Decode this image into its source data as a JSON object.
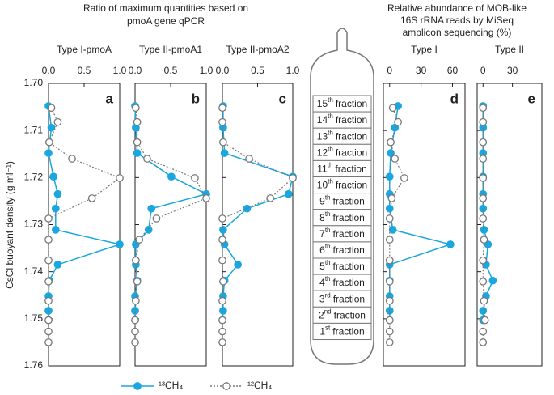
{
  "left_title": [
    "Ratio of maximum quantities based on",
    "pmoA gene qPCR"
  ],
  "right_title": [
    "Relative abundance of MOB-like",
    "16S rRNA  reads by MiSeq",
    "amplicon sequencing (%)"
  ],
  "diagram": {
    "fractions": [
      {
        "n": "15",
        "sup": "th",
        "word": "fraction"
      },
      {
        "n": "14",
        "sup": "th",
        "word": "fraction"
      },
      {
        "n": "13",
        "sup": "th",
        "word": "fraction"
      },
      {
        "n": "12",
        "sup": "th",
        "word": "fraction"
      },
      {
        "n": "11",
        "sup": "th",
        "word": "fraction"
      },
      {
        "n": "10",
        "sup": "th",
        "word": "fraction"
      },
      {
        "n": "9",
        "sup": "th",
        "word": "fraction"
      },
      {
        "n": "8",
        "sup": "th",
        "word": "fraction"
      },
      {
        "n": "7",
        "sup": "th",
        "word": "fraction"
      },
      {
        "n": "6",
        "sup": "th",
        "word": "fraction"
      },
      {
        "n": "5",
        "sup": "th",
        "word": "fraction"
      },
      {
        "n": "4",
        "sup": "th",
        "word": "fraction"
      },
      {
        "n": "3",
        "sup": "rd",
        "word": "fraction"
      },
      {
        "n": "2",
        "sup": "nd",
        "word": "fraction"
      },
      {
        "n": "1",
        "sup": "st",
        "word": "fraction"
      }
    ]
  },
  "chart_data": [
    {
      "type": "line",
      "title": "Type I-pmoA",
      "panel_label": "a",
      "ylabel": "CsCl buoyant density (g ml⁻¹)",
      "xlim": [
        0,
        1
      ],
      "xticks": [
        {
          "value": 0,
          "label": "0.0"
        },
        {
          "value": 0.5,
          "label": "0.5"
        },
        {
          "value": 1,
          "label": "1.0"
        }
      ],
      "ylim": [
        1.7,
        1.76
      ],
      "yticks": [
        {
          "value": 1.7,
          "label": "1.70"
        },
        1.71,
        1.72,
        1.73,
        1.74,
        1.75,
        1.76
      ],
      "series": [
        {
          "name": "¹³CH₄",
          "color": "#1aa6df",
          "style": "solid",
          "y": [
            1.7048,
            1.7094,
            1.7148,
            1.7198,
            1.7235,
            1.7266,
            1.7311,
            1.7342,
            1.7385,
            1.7419,
            1.7452,
            1.7483,
            1.7503
          ],
          "values": [
            0,
            0.04,
            0,
            0.07,
            0.13,
            0.1,
            0.1,
            1.0,
            0.13,
            0.01,
            0,
            0,
            0
          ]
        },
        {
          "name": "¹²CH₄",
          "color": "#777777",
          "style": "dotted",
          "y": [
            1.7052,
            1.7082,
            1.7125,
            1.716,
            1.7201,
            1.7244,
            1.7287,
            1.7332,
            1.7376,
            1.7421,
            1.7462,
            1.7503,
            1.7527,
            1.755
          ],
          "values": [
            0.04,
            0.13,
            0.01,
            0.33,
            1.0,
            0.61,
            0,
            0,
            0,
            0,
            0,
            0,
            0,
            0
          ]
        }
      ]
    },
    {
      "type": "line",
      "title": "Type II-pmoA1",
      "panel_label": "b",
      "xlim": [
        0,
        1
      ],
      "xticks": [
        {
          "value": 0,
          "label": "0.0"
        },
        {
          "value": 0.5,
          "label": "0.5"
        },
        {
          "value": 1,
          "label": "1.0"
        }
      ],
      "ylim": [
        1.7,
        1.76
      ],
      "series": [
        {
          "color": "#1aa6df",
          "style": "solid",
          "y": [
            1.7048,
            1.7094,
            1.7148,
            1.7198,
            1.7235,
            1.7266,
            1.7311,
            1.7342,
            1.7385,
            1.7419,
            1.7452,
            1.7483,
            1.7503
          ],
          "values": [
            0,
            0.01,
            0.03,
            0.51,
            1.0,
            0.23,
            0.19,
            0.01,
            0.01,
            0.03,
            0,
            0,
            0
          ]
        },
        {
          "color": "#777777",
          "style": "dotted",
          "y": [
            1.7052,
            1.7082,
            1.7125,
            1.716,
            1.7201,
            1.7244,
            1.7287,
            1.7332,
            1.7376,
            1.7421,
            1.7462,
            1.7503,
            1.7527,
            1.755
          ],
          "values": [
            0.01,
            0.03,
            0.03,
            0.17,
            0.84,
            1.0,
            0.3,
            0.06,
            0.01,
            0.03,
            0.01,
            0,
            0,
            0
          ]
        }
      ]
    },
    {
      "type": "line",
      "title": "Type II-pmoA2",
      "panel_label": "c",
      "xlim": [
        0,
        1
      ],
      "xticks": [
        {
          "value": 0,
          "label": "0.0"
        },
        {
          "value": 0.5,
          "label": "0.5"
        },
        {
          "value": 1,
          "label": "1.0"
        }
      ],
      "ylim": [
        1.7,
        1.76
      ],
      "series": [
        {
          "color": "#1aa6df",
          "style": "solid",
          "y": [
            1.7048,
            1.7094,
            1.7148,
            1.7198,
            1.7235,
            1.7266,
            1.7311,
            1.7342,
            1.7385,
            1.7419,
            1.7452,
            1.7483,
            1.7503
          ],
          "values": [
            0.01,
            0.01,
            0.03,
            1.0,
            0.94,
            0.35,
            0.01,
            0.03,
            0.22,
            0.03,
            0.01,
            0.01,
            0
          ]
        },
        {
          "color": "#777777",
          "style": "dotted",
          "y": [
            1.7052,
            1.7082,
            1.7125,
            1.716,
            1.7201,
            1.7244,
            1.7287,
            1.7332,
            1.7376,
            1.7421,
            1.7462,
            1.7503,
            1.7527,
            1.755
          ],
          "values": [
            0,
            0,
            0.01,
            0.38,
            1.0,
            0.68,
            0,
            0,
            0,
            0.01,
            0,
            0,
            0,
            0
          ]
        }
      ]
    },
    {
      "type": "line",
      "title": "Type I",
      "panel_label": "d",
      "xlim": [
        -6,
        72
      ],
      "xticks": [
        0,
        30,
        60
      ],
      "ylim": [
        1.7,
        1.76
      ],
      "series": [
        {
          "color": "#1aa6df",
          "style": "solid",
          "y": [
            1.7048,
            1.7094,
            1.7148,
            1.7198,
            1.7235,
            1.7266,
            1.7311,
            1.7342,
            1.7385,
            1.7419,
            1.7452,
            1.7483,
            1.7503
          ],
          "values": [
            8,
            5,
            1,
            0,
            0,
            0,
            3,
            58,
            0,
            0,
            0,
            0,
            0
          ]
        },
        {
          "color": "#777777",
          "style": "dotted",
          "y": [
            1.7052,
            1.7082,
            1.7125,
            1.716,
            1.7201,
            1.7244,
            1.7287,
            1.7332,
            1.7376,
            1.7421,
            1.7462,
            1.7503,
            1.7527,
            1.755
          ],
          "values": [
            3,
            8,
            1,
            5,
            14,
            2,
            0,
            0,
            0,
            0,
            0,
            0,
            0,
            0
          ]
        }
      ]
    },
    {
      "type": "line",
      "title": "Type II",
      "panel_label": "e",
      "xlim": [
        -6,
        60
      ],
      "xticks": [
        0,
        30
      ],
      "ylim": [
        1.7,
        1.76
      ],
      "series": [
        {
          "color": "#1aa6df",
          "style": "solid",
          "y": [
            1.7048,
            1.7094,
            1.7148,
            1.7198,
            1.7235,
            1.7266,
            1.7311,
            1.7342,
            1.7385,
            1.7419,
            1.7452,
            1.7483,
            1.7503
          ],
          "values": [
            0,
            0,
            0,
            0,
            0,
            0,
            1,
            5,
            3,
            10,
            3,
            0,
            0
          ]
        },
        {
          "color": "#777777",
          "style": "dotted",
          "y": [
            1.7052,
            1.7082,
            1.7125,
            1.716,
            1.7201,
            1.7244,
            1.7287,
            1.7332,
            1.7376,
            1.7421,
            1.7462,
            1.7503,
            1.7527,
            1.755
          ],
          "values": [
            0,
            0,
            0,
            0,
            0,
            0,
            0,
            1,
            0,
            0,
            1,
            2,
            0,
            0
          ]
        }
      ]
    }
  ]
}
